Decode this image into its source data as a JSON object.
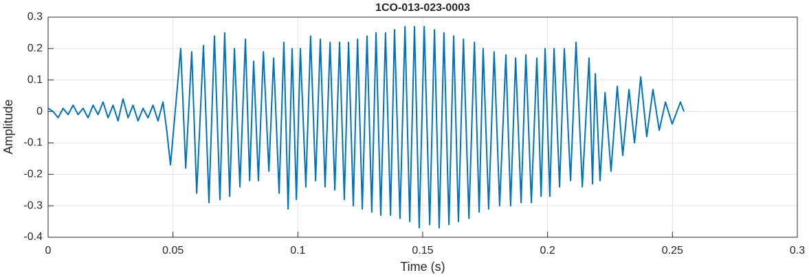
{
  "chart_data": {
    "type": "line",
    "title": "1CO-013-023-0003",
    "xlabel": "Time (s)",
    "ylabel": "Amplitude",
    "xlim": [
      0,
      0.3
    ],
    "xticks": [
      0,
      0.05,
      0.1,
      0.15,
      0.2,
      0.25,
      0.3
    ],
    "ylim": [
      -0.4,
      0.3
    ],
    "yticks": [
      -0.4,
      -0.3,
      -0.2,
      -0.1,
      0,
      0.1,
      0.2,
      0.3
    ],
    "grid": true,
    "x": [
      0,
      0.002,
      0.004,
      0.006,
      0.008,
      0.01,
      0.012,
      0.014,
      0.016,
      0.018,
      0.02,
      0.022,
      0.024,
      0.026,
      0.028,
      0.03,
      0.032,
      0.034,
      0.036,
      0.038,
      0.04,
      0.042,
      0.044,
      0.046,
      0.0475,
      0.049,
      0.0531,
      0.0551,
      0.0575,
      0.0595,
      0.0622,
      0.0644,
      0.0666,
      0.0688,
      0.0707,
      0.0727,
      0.0746,
      0.0768,
      0.079,
      0.0807,
      0.0823,
      0.0842,
      0.0862,
      0.0884,
      0.0903,
      0.0925,
      0.0944,
      0.0961,
      0.0977,
      0.0994,
      0.101,
      0.1032,
      0.1051,
      0.1071,
      0.109,
      0.1109,
      0.1129,
      0.1148,
      0.1167,
      0.1186,
      0.1203,
      0.1222,
      0.1239,
      0.1258,
      0.1277,
      0.1296,
      0.1313,
      0.1332,
      0.1351,
      0.1371,
      0.1387,
      0.1409,
      0.1429,
      0.1448,
      0.1467,
      0.1486,
      0.1506,
      0.1528,
      0.1547,
      0.1566,
      0.1585,
      0.1605,
      0.1624,
      0.1643,
      0.1663,
      0.1685,
      0.1707,
      0.1726,
      0.1742,
      0.1764,
      0.1786,
      0.1808,
      0.1833,
      0.1852,
      0.1872,
      0.1894,
      0.1913,
      0.1935,
      0.1957,
      0.1974,
      0.199,
      0.2009,
      0.2026,
      0.2048,
      0.2067,
      0.2092,
      0.2114,
      0.2139,
      0.2166,
      0.218,
      0.2191,
      0.221,
      0.223,
      0.2254,
      0.2279,
      0.2301,
      0.2326,
      0.2348,
      0.2373,
      0.2397,
      0.2422,
      0.2447,
      0.2472,
      0.2499,
      0.2532,
      0.2546
    ],
    "series": [
      {
        "color": "#0072bd",
        "values": [
          0.01,
          0,
          -0.02,
          0.01,
          -0.01,
          0.02,
          -0.01,
          0.01,
          -0.02,
          0.02,
          -0.01,
          0.03,
          -0.02,
          0.02,
          -0.03,
          0.04,
          -0.02,
          0.02,
          -0.03,
          0.01,
          -0.02,
          0.02,
          -0.03,
          0.03,
          -0.06,
          -0.17,
          0.2,
          -0.18,
          0.19,
          -0.26,
          0.21,
          -0.29,
          0.24,
          -0.28,
          0.25,
          -0.27,
          0.2,
          -0.24,
          0.23,
          -0.22,
          0.16,
          -0.22,
          0.19,
          -0.19,
          0.17,
          -0.26,
          0.22,
          -0.31,
          0.2,
          -0.28,
          0.2,
          -0.24,
          0.24,
          -0.22,
          0.23,
          -0.24,
          0.22,
          -0.25,
          0.22,
          -0.28,
          0.22,
          -0.3,
          0.23,
          -0.31,
          0.24,
          -0.32,
          0.25,
          -0.33,
          0.25,
          -0.33,
          0.26,
          -0.34,
          0.27,
          -0.35,
          0.27,
          -0.37,
          0.27,
          -0.36,
          0.26,
          -0.37,
          0.25,
          -0.36,
          0.24,
          -0.35,
          0.23,
          -0.34,
          0.22,
          -0.32,
          0.2,
          -0.31,
          0.19,
          -0.3,
          0.18,
          -0.3,
          0.17,
          -0.29,
          0.18,
          -0.29,
          0.17,
          -0.27,
          0.2,
          -0.27,
          0.2,
          -0.24,
          0.2,
          -0.22,
          0.22,
          -0.24,
          0.17,
          -0.23,
          0.12,
          -0.22,
          0.06,
          -0.19,
          0.08,
          -0.14,
          0.07,
          -0.1,
          0.11,
          -0.08,
          0.07,
          -0.06,
          0.03,
          -0.04,
          0.03,
          0
        ]
      }
    ]
  }
}
